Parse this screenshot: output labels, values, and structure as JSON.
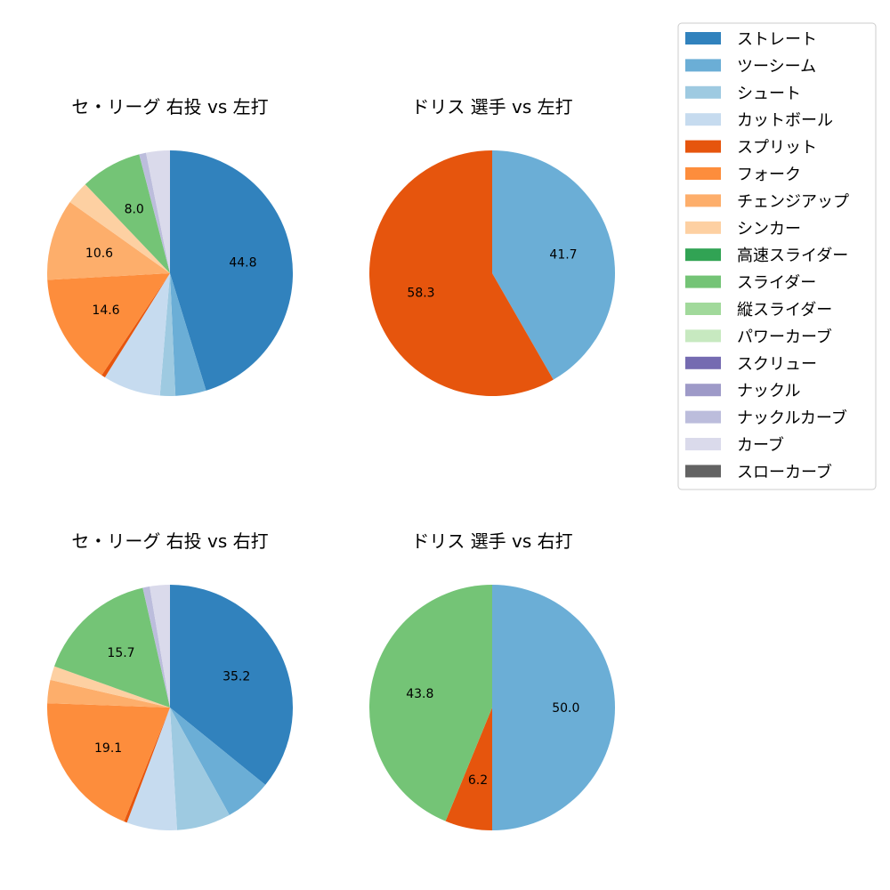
{
  "legend": {
    "entries": [
      {
        "name": "ストレート",
        "color": "#3182bd"
      },
      {
        "name": "ツーシーム",
        "color": "#6baed6"
      },
      {
        "name": "シュート",
        "color": "#9ecae1"
      },
      {
        "name": "カットボール",
        "color": "#c6dbef"
      },
      {
        "name": "スプリット",
        "color": "#e6550d"
      },
      {
        "name": "フォーク",
        "color": "#fd8d3c"
      },
      {
        "name": "チェンジアップ",
        "color": "#fdae6b"
      },
      {
        "name": "シンカー",
        "color": "#fdd0a2"
      },
      {
        "name": "高速スライダー",
        "color": "#31a354"
      },
      {
        "name": "スライダー",
        "color": "#74c476"
      },
      {
        "name": "縦スライダー",
        "color": "#a1d99b"
      },
      {
        "name": "パワーカーブ",
        "color": "#c7e9c0"
      },
      {
        "name": "スクリュー",
        "color": "#756bb1"
      },
      {
        "name": "ナックル",
        "color": "#9e9ac8"
      },
      {
        "name": "ナックルカーブ",
        "color": "#bcbddc"
      },
      {
        "name": "カーブ",
        "color": "#dadaeb"
      },
      {
        "name": "スローカーブ",
        "color": "#636363"
      }
    ]
  },
  "chart_data": [
    {
      "type": "pie",
      "title": "セ・リーグ 右投 vs 左打",
      "slices": [
        {
          "name": "ストレート",
          "value": 44.8,
          "color": "#3182bd",
          "label": "44.8"
        },
        {
          "name": "ツーシーム",
          "value": 4.0,
          "color": "#6baed6",
          "label": ""
        },
        {
          "name": "シュート",
          "value": 2.0,
          "color": "#9ecae1",
          "label": ""
        },
        {
          "name": "カットボール",
          "value": 7.5,
          "color": "#c6dbef",
          "label": ""
        },
        {
          "name": "スプリット",
          "value": 0.5,
          "color": "#e6550d",
          "label": ""
        },
        {
          "name": "フォーク",
          "value": 14.6,
          "color": "#fd8d3c",
          "label": "14.6"
        },
        {
          "name": "チェンジアップ",
          "value": 10.6,
          "color": "#fdae6b",
          "label": "10.6"
        },
        {
          "name": "シンカー",
          "value": 3.0,
          "color": "#fdd0a2",
          "label": ""
        },
        {
          "name": "スライダー",
          "value": 8.0,
          "color": "#74c476",
          "label": "8.0"
        },
        {
          "name": "ナックルカーブ",
          "value": 0.9,
          "color": "#bcbddc",
          "label": ""
        },
        {
          "name": "カーブ",
          "value": 3.1,
          "color": "#dadaeb",
          "label": ""
        }
      ]
    },
    {
      "type": "pie",
      "title": "ドリス 選手 vs 左打",
      "slices": [
        {
          "name": "ツーシーム",
          "value": 41.7,
          "color": "#6baed6",
          "label": "41.7"
        },
        {
          "name": "スプリット",
          "value": 58.3,
          "color": "#e6550d",
          "label": "58.3"
        }
      ]
    },
    {
      "type": "pie",
      "title": "セ・リーグ 右投 vs 右打",
      "slices": [
        {
          "name": "ストレート",
          "value": 35.2,
          "color": "#3182bd",
          "label": "35.2"
        },
        {
          "name": "ツーシーム",
          "value": 6.0,
          "color": "#6baed6",
          "label": ""
        },
        {
          "name": "シュート",
          "value": 7.0,
          "color": "#9ecae1",
          "label": ""
        },
        {
          "name": "カットボール",
          "value": 6.5,
          "color": "#c6dbef",
          "label": ""
        },
        {
          "name": "スプリット",
          "value": 0.4,
          "color": "#e6550d",
          "label": ""
        },
        {
          "name": "フォーク",
          "value": 19.1,
          "color": "#fd8d3c",
          "label": "19.1"
        },
        {
          "name": "チェンジアップ",
          "value": 3.0,
          "color": "#fdae6b",
          "label": ""
        },
        {
          "name": "シンカー",
          "value": 1.8,
          "color": "#fdd0a2",
          "label": ""
        },
        {
          "name": "スライダー",
          "value": 15.7,
          "color": "#74c476",
          "label": "15.7"
        },
        {
          "name": "ナックルカーブ",
          "value": 0.9,
          "color": "#bcbddc",
          "label": ""
        },
        {
          "name": "カーブ",
          "value": 2.6,
          "color": "#dadaeb",
          "label": ""
        }
      ]
    },
    {
      "type": "pie",
      "title": "ドリス 選手 vs 右打",
      "slices": [
        {
          "name": "ツーシーム",
          "value": 50.0,
          "color": "#6baed6",
          "label": "50.0"
        },
        {
          "name": "スプリット",
          "value": 6.2,
          "color": "#e6550d",
          "label": "6.2"
        },
        {
          "name": "スライダー",
          "value": 43.8,
          "color": "#74c476",
          "label": "43.8"
        }
      ]
    }
  ]
}
